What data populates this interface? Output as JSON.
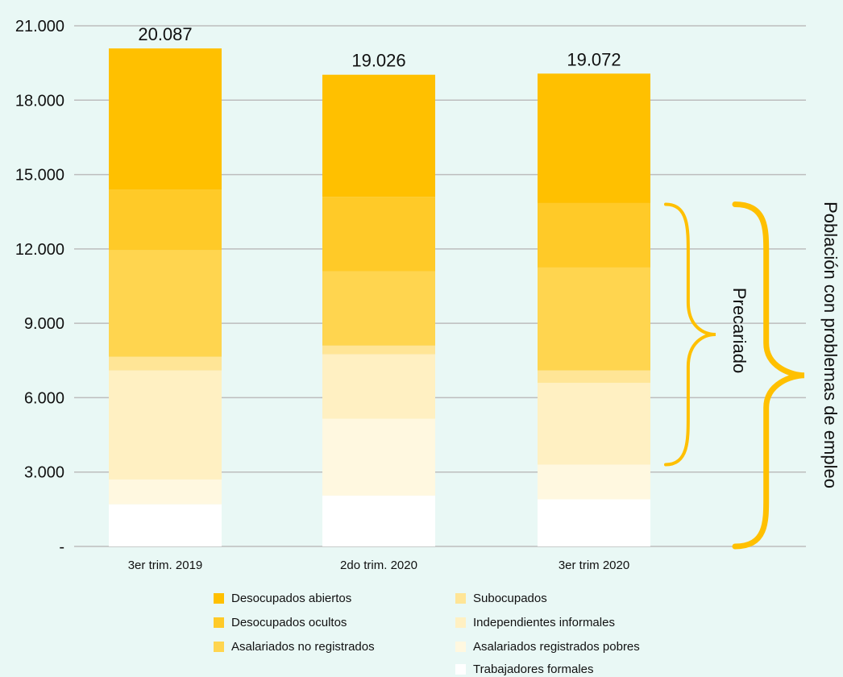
{
  "chart_data": {
    "type": "bar",
    "stacked": true,
    "title": "",
    "xlabel": "",
    "ylabel": "",
    "ylim": [
      0,
      21000
    ],
    "yticks": [
      {
        "value": 0,
        "label": "-"
      },
      {
        "value": 3000,
        "label": "3.000"
      },
      {
        "value": 6000,
        "label": "6.000"
      },
      {
        "value": 9000,
        "label": "9.000"
      },
      {
        "value": 12000,
        "label": "12.000"
      },
      {
        "value": 15000,
        "label": "15.000"
      },
      {
        "value": 18000,
        "label": "18.000"
      },
      {
        "value": 21000,
        "label": "21.000"
      }
    ],
    "grid": true,
    "legend_position": "bottom",
    "categories": [
      "3er trim. 2019",
      "2do trim. 2020",
      "3er trim 2020"
    ],
    "totals": [
      {
        "value": 20087,
        "label": "20.087"
      },
      {
        "value": 19026,
        "label": "19.026"
      },
      {
        "value": 19072,
        "label": "19.072"
      }
    ],
    "series": [
      {
        "name": "Trabajadores formales",
        "color": "#ffffff",
        "values": [
          1700,
          2050,
          1900
        ]
      },
      {
        "name": "Asalariados registrados pobres",
        "color": "#fff8e0",
        "values": [
          1000,
          3100,
          1400
        ]
      },
      {
        "name": "Independientes informales",
        "color": "#fff0c2",
        "values": [
          4400,
          2600,
          3300
        ]
      },
      {
        "name": "Subocupados",
        "color": "#ffe596",
        "values": [
          550,
          350,
          500
        ]
      },
      {
        "name": "Asalariados no registrados",
        "color": "#ffd54f",
        "values": [
          4300,
          3000,
          4150
        ]
      },
      {
        "name": "Desocupados ocultos",
        "color": "#ffca28",
        "values": [
          2450,
          3000,
          2600
        ]
      },
      {
        "name": "Desocupados abiertos",
        "color": "#ffc000",
        "values": [
          5687,
          4926,
          5222
        ]
      }
    ],
    "annotations": [
      {
        "label": "Precariado",
        "range": [
          3300,
          13800
        ],
        "color": "#ffc000"
      },
      {
        "label": "Población con problemas de empleo",
        "range": [
          0,
          13800
        ],
        "color": "#ffc000"
      }
    ]
  },
  "legend": {
    "items": [
      {
        "name": "Desocupados abiertos",
        "color": "#ffc000"
      },
      {
        "name": "Desocupados ocultos",
        "color": "#ffca28"
      },
      {
        "name": "Asalariados no registrados",
        "color": "#ffd54f"
      },
      {
        "name": "Subocupados",
        "color": "#ffe596"
      },
      {
        "name": "Independientes informales",
        "color": "#fff0c2"
      },
      {
        "name": "Asalariados registrados pobres",
        "color": "#fff8e0"
      },
      {
        "name": "Trabajadores formales",
        "color": "#ffffff"
      }
    ]
  }
}
